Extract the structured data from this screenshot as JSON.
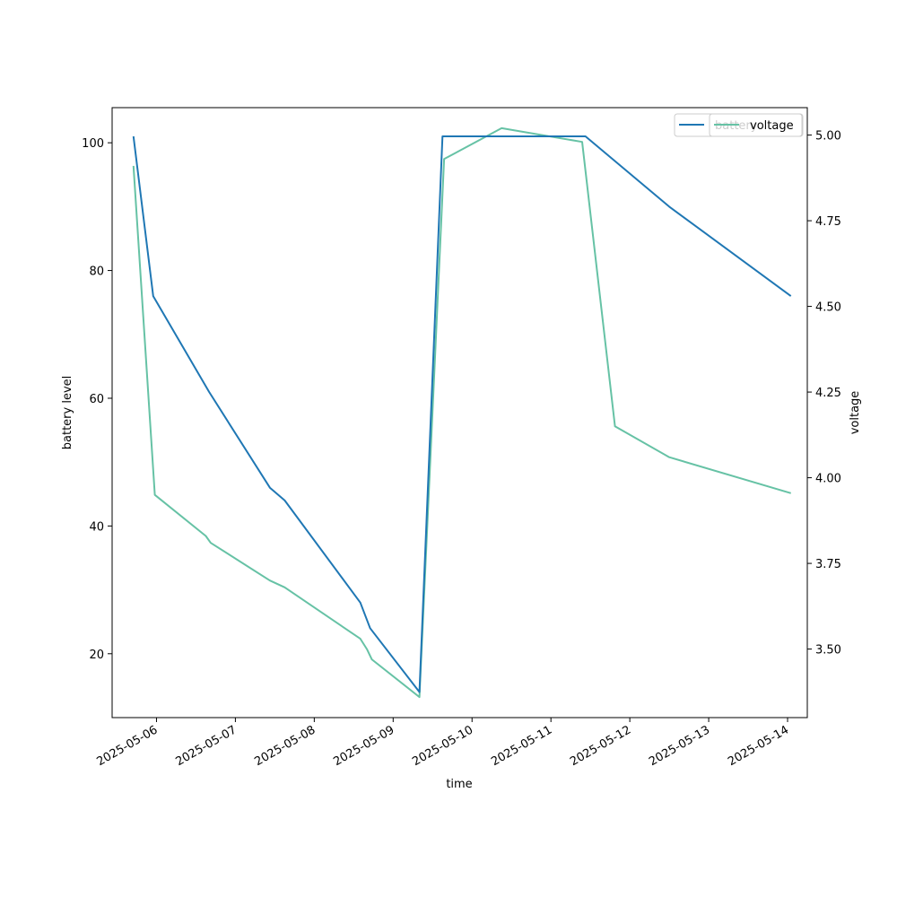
{
  "chart_data": {
    "type": "line",
    "title": "",
    "xlabel": "time",
    "ylabel": "battery level",
    "y2label": "voltage",
    "xlim": [
      "2025-05-05T10:30",
      "2025-05-14T06:00"
    ],
    "ylim": [
      10,
      105.5
    ],
    "y2lim": [
      3.3,
      5.08
    ],
    "x_ticks": [
      "2025-05-06",
      "2025-05-07",
      "2025-05-08",
      "2025-05-09",
      "2025-05-10",
      "2025-05-11",
      "2025-05-12",
      "2025-05-13",
      "2025-05-14"
    ],
    "y_ticks": [
      20,
      40,
      60,
      80,
      100
    ],
    "y2_ticks": [
      "3.50",
      "3.75",
      "4.00",
      "4.25",
      "4.50",
      "4.75",
      "5.00"
    ],
    "grid": false,
    "legend_position": "top-right",
    "series": [
      {
        "name": "battery",
        "axis": "left",
        "color": "#1f77b4",
        "x": [
          "2025-05-05T17:00",
          "2025-05-05T23:00",
          "2025-05-06T16:00",
          "2025-05-07T10:30",
          "2025-05-07T15:00",
          "2025-05-08T14:00",
          "2025-05-08T17:00",
          "2025-05-09T08:00",
          "2025-05-09T15:00",
          "2025-05-10T10:00",
          "2025-05-11T10:30",
          "2025-05-12T12:00",
          "2025-05-14T01:00"
        ],
        "values": [
          101,
          76,
          61,
          46,
          44,
          28,
          24,
          14,
          101,
          101,
          101,
          90,
          76
        ]
      },
      {
        "name": "voltage",
        "axis": "right",
        "color": "#66c2a5",
        "x": [
          "2025-05-05T17:00",
          "2025-05-05T23:30",
          "2025-05-06T15:00",
          "2025-05-06T16:30",
          "2025-05-07T10:30",
          "2025-05-07T15:00",
          "2025-05-08T14:00",
          "2025-05-08T16:00",
          "2025-05-08T17:30",
          "2025-05-09T08:00",
          "2025-05-09T15:30",
          "2025-05-10T09:00",
          "2025-05-11T09:30",
          "2025-05-11T19:30",
          "2025-05-12T12:00",
          "2025-05-14T01:00"
        ],
        "values": [
          4.91,
          3.95,
          3.83,
          3.81,
          3.7,
          3.68,
          3.53,
          3.5,
          3.47,
          3.36,
          4.93,
          5.02,
          4.98,
          4.15,
          4.06,
          3.955
        ]
      }
    ]
  }
}
